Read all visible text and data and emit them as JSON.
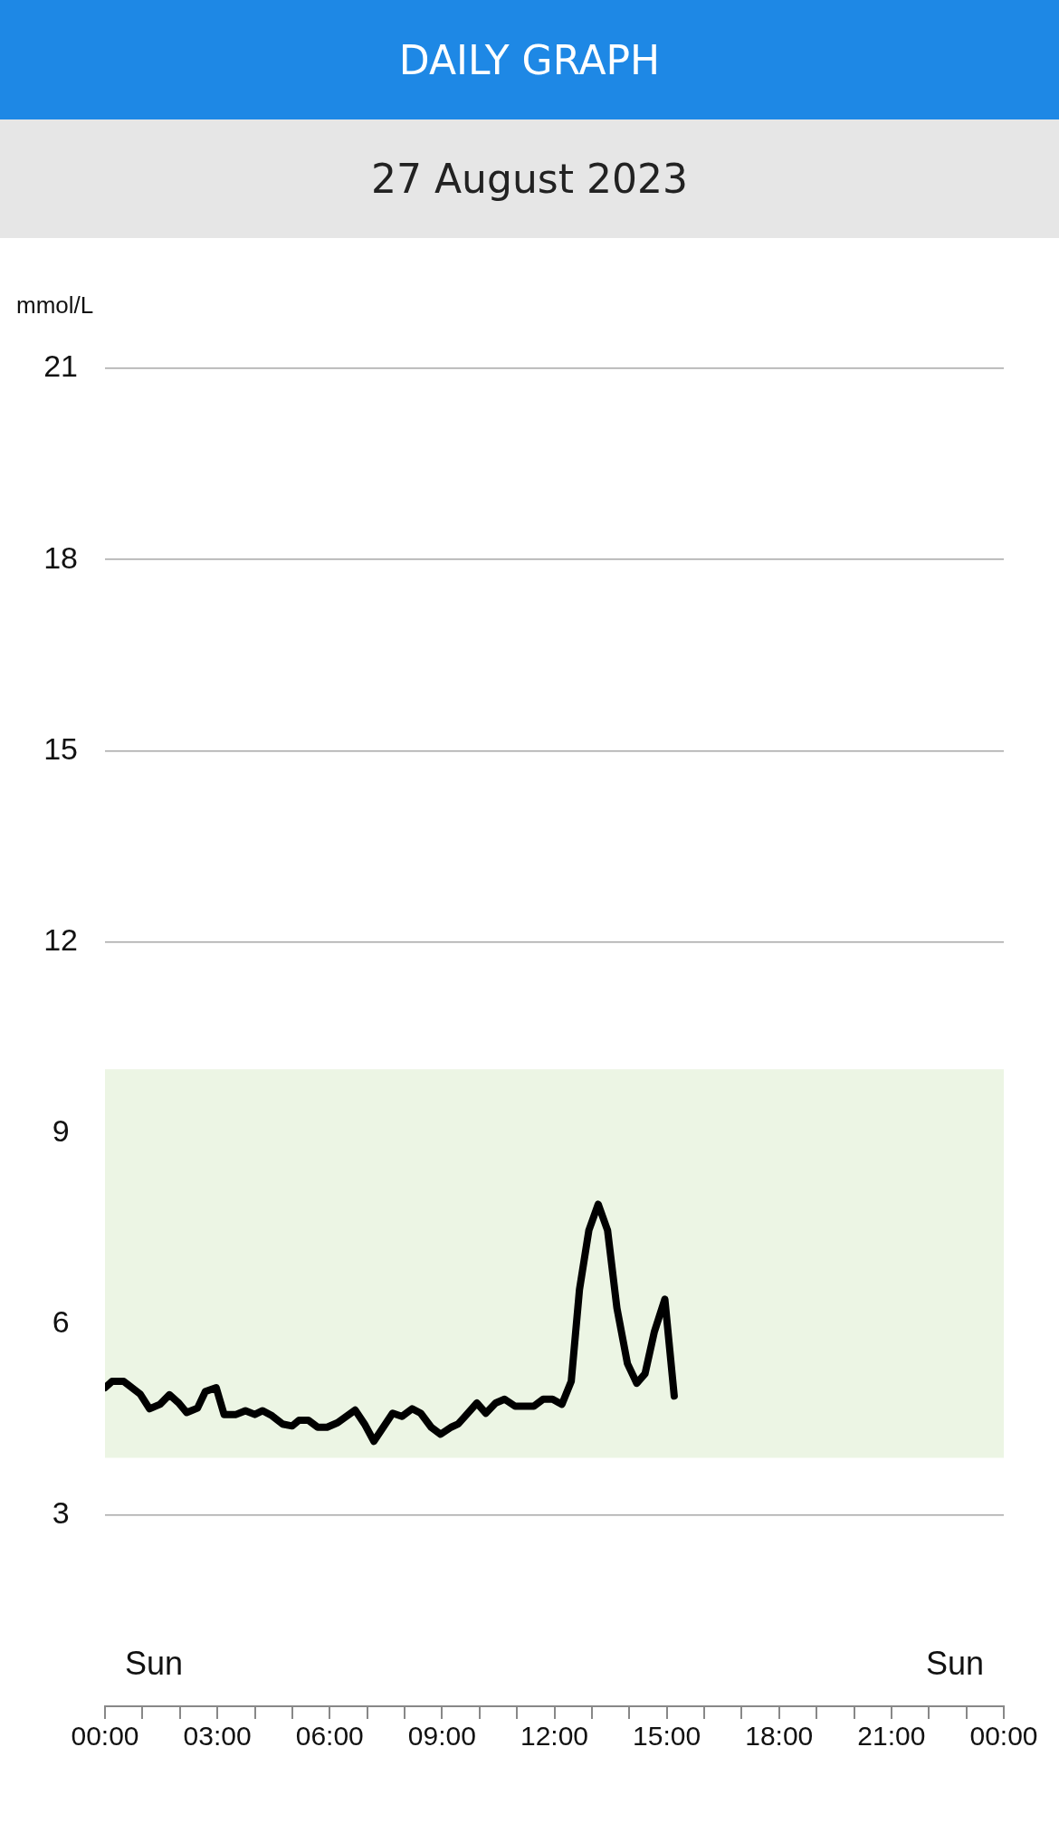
{
  "chart_data": {
    "type": "line",
    "title": "DAILY GRAPH",
    "subtitle": "27 August 2023",
    "ylabel": "mmol/L",
    "x": [
      0,
      0.19,
      0.5,
      0.94,
      1.19,
      1.47,
      1.72,
      1.97,
      2.18,
      2.47,
      2.68,
      2.97,
      3.18,
      3.5,
      3.75,
      4.0,
      4.21,
      4.46,
      4.74,
      5.0,
      5.18,
      5.43,
      5.68,
      5.93,
      6.21,
      6.68,
      6.93,
      7.18,
      7.68,
      7.93,
      8.2,
      8.43,
      8.71,
      8.96,
      9.24,
      9.43,
      9.93,
      10.17,
      10.43,
      10.67,
      10.95,
      11.45,
      11.7,
      11.95,
      12.2,
      12.45,
      12.67,
      12.92,
      13.17,
      13.42,
      13.67,
      13.95,
      14.2,
      14.42,
      14.67,
      14.95,
      15.2
    ],
    "series": [
      {
        "color": "#000000",
        "values": [
          5.0,
          5.1,
          5.1,
          4.9,
          4.67,
          4.74,
          4.89,
          4.76,
          4.61,
          4.68,
          4.94,
          5.0,
          4.58,
          4.58,
          4.64,
          4.58,
          4.64,
          4.56,
          4.43,
          4.4,
          4.49,
          4.49,
          4.38,
          4.38,
          4.45,
          4.65,
          4.43,
          4.16,
          4.6,
          4.55,
          4.67,
          4.6,
          4.38,
          4.27,
          4.38,
          4.43,
          4.76,
          4.6,
          4.76,
          4.82,
          4.71,
          4.71,
          4.82,
          4.82,
          4.74,
          5.1,
          6.54,
          7.47,
          7.88,
          7.47,
          6.25,
          5.38,
          5.07,
          5.22,
          5.88,
          6.39,
          4.87
        ]
      }
    ],
    "xlim": [
      0,
      24
    ],
    "xticks": [
      {
        "value": 0,
        "label": "00:00"
      },
      {
        "value": 1,
        "label": null
      },
      {
        "value": 2,
        "label": null
      },
      {
        "value": 3,
        "label": "03:00"
      },
      {
        "value": 4,
        "label": null
      },
      {
        "value": 5,
        "label": null
      },
      {
        "value": 6,
        "label": "06:00"
      },
      {
        "value": 7,
        "label": null
      },
      {
        "value": 8,
        "label": null
      },
      {
        "value": 9,
        "label": "09:00"
      },
      {
        "value": 10,
        "label": null
      },
      {
        "value": 11,
        "label": null
      },
      {
        "value": 12,
        "label": "12:00"
      },
      {
        "value": 13,
        "label": null
      },
      {
        "value": 14,
        "label": null
      },
      {
        "value": 15,
        "label": "15:00"
      },
      {
        "value": 16,
        "label": null
      },
      {
        "value": 17,
        "label": null
      },
      {
        "value": 18,
        "label": "18:00"
      },
      {
        "value": 19,
        "label": null
      },
      {
        "value": 20,
        "label": null
      },
      {
        "value": 21,
        "label": "21:00"
      },
      {
        "value": 22,
        "label": null
      },
      {
        "value": 23,
        "label": null
      },
      {
        "value": 24,
        "label": "00:00"
      }
    ],
    "ylim": [
      0,
      21
    ],
    "yticks": [
      3,
      6,
      9,
      12,
      15,
      18,
      21
    ],
    "bands": [
      {
        "axis": "y",
        "from": 3.9,
        "to": 10,
        "color": "#ecf5e4"
      }
    ],
    "annotations": [
      "Sun",
      "Sun"
    ],
    "grid": "y",
    "legend": false,
    "marker": "none",
    "line_style": "solid"
  }
}
